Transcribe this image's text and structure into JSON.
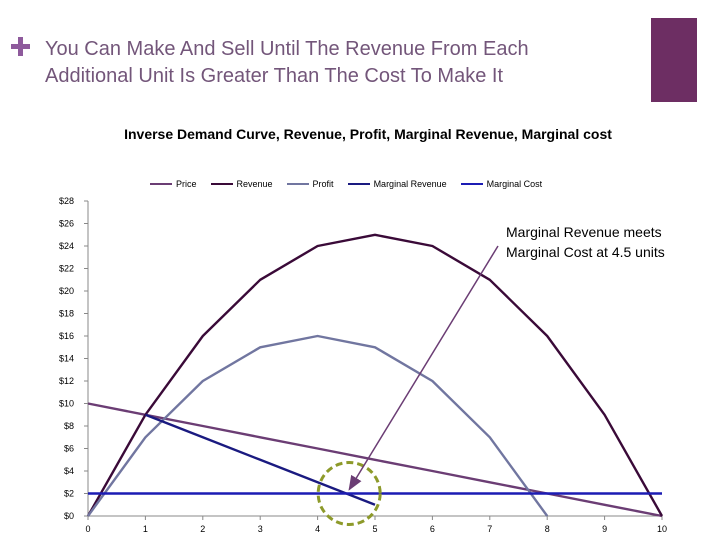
{
  "slide": {
    "bullet_text": "You Can Make And Sell Until The Revenue From Each Additional Unit Is Greater Than The Cost To Make It"
  },
  "colors": {
    "bullet": "#8e5a9c",
    "accent": "#6d2e63",
    "price": "#6b3d74",
    "revenue": "#3a0a38",
    "profit": "#7176a0",
    "marginal_revenue": "#1a1a80",
    "marginal_cost": "#1c1cb4",
    "highlight_circle": "#8d9a2a",
    "arrow": "#6b3d74"
  },
  "annotation": {
    "text": "Marginal Revenue meets Marginal Cost at 4.5 units",
    "points_to": {
      "x": 4.5,
      "y": 2
    },
    "highlight_center": {
      "x": 4.55,
      "y": 2
    }
  },
  "chart_data": {
    "type": "line",
    "title": "Inverse Demand Curve, Revenue, Profit, Marginal Revenue, Marginal cost",
    "xlabel": "",
    "ylabel": "",
    "xlim": [
      0,
      10
    ],
    "ylim": [
      0,
      28
    ],
    "x_ticks": [
      "0",
      "1",
      "2",
      "3",
      "4",
      "5",
      "6",
      "7",
      "8",
      "9",
      "10"
    ],
    "y_ticks": [
      "$0",
      "$2",
      "$4",
      "$6",
      "$8",
      "$10",
      "$12",
      "$14",
      "$16",
      "$18",
      "$20",
      "$22",
      "$24",
      "$26",
      "$28"
    ],
    "grid": false,
    "legend_position": "top",
    "series": [
      {
        "name": "Price",
        "color_key": "price",
        "points": [
          [
            0,
            10
          ],
          [
            1,
            9
          ],
          [
            2,
            8
          ],
          [
            3,
            7
          ],
          [
            4,
            6
          ],
          [
            5,
            5
          ],
          [
            6,
            4
          ],
          [
            7,
            3
          ],
          [
            8,
            2
          ],
          [
            9,
            1
          ],
          [
            10,
            0
          ]
        ]
      },
      {
        "name": "Revenue",
        "color_key": "revenue",
        "points": [
          [
            0,
            0
          ],
          [
            1,
            9
          ],
          [
            2,
            16
          ],
          [
            3,
            21
          ],
          [
            4,
            24
          ],
          [
            5,
            25
          ],
          [
            6,
            24
          ],
          [
            7,
            21
          ],
          [
            8,
            16
          ],
          [
            9,
            9
          ],
          [
            10,
            0
          ]
        ]
      },
      {
        "name": "Profit",
        "color_key": "profit",
        "points": [
          [
            0,
            0
          ],
          [
            1,
            7
          ],
          [
            2,
            12
          ],
          [
            3,
            15
          ],
          [
            4,
            16
          ],
          [
            5,
            15
          ],
          [
            6,
            12
          ],
          [
            7,
            7
          ],
          [
            8,
            0
          ]
        ]
      },
      {
        "name": "Marginal Revenue",
        "color_key": "marginal_revenue",
        "points": [
          [
            1,
            9
          ],
          [
            2,
            7
          ],
          [
            3,
            5
          ],
          [
            4,
            3
          ],
          [
            5,
            1
          ]
        ]
      },
      {
        "name": "Marginal Cost",
        "color_key": "marginal_cost",
        "points": [
          [
            0,
            2
          ],
          [
            10,
            2
          ]
        ]
      }
    ]
  }
}
